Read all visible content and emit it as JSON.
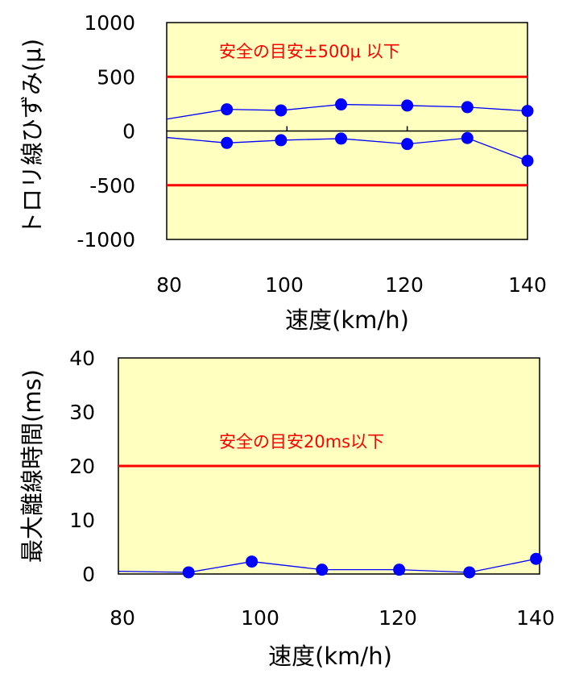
{
  "chart_data": [
    {
      "type": "line",
      "xlabel": "速度(km/h)",
      "ylabel": "トロリ線ひずみ(μ)",
      "xlim": [
        80,
        140
      ],
      "ylim": [
        -1000,
        1000
      ],
      "x_ticks": [
        "80",
        "100",
        "120",
        "140"
      ],
      "y_ticks": [
        "1000",
        "500",
        "0",
        "-500",
        "-1000"
      ],
      "grid": false,
      "background": "#ffffc0",
      "series": [
        {
          "color": "#0000ff",
          "x": [
            75,
            90,
            99,
            109,
            120,
            130,
            140
          ],
          "y": [
            110,
            200,
            190,
            245,
            235,
            220,
            185
          ],
          "markers_from_index": 1
        },
        {
          "color": "#0000ff",
          "x": [
            75,
            90,
            99,
            109,
            120,
            130,
            140
          ],
          "y": [
            -60,
            -110,
            -85,
            -70,
            -120,
            -65,
            -275
          ],
          "markers_from_index": 1
        }
      ],
      "reference_lines": [
        {
          "y": 500,
          "color": "#ff0000"
        },
        {
          "y": -500,
          "color": "#ff0000"
        }
      ],
      "annotation": "安全の目安±500μ 以下"
    },
    {
      "type": "line",
      "xlabel": "速度(km/h)",
      "ylabel": "最大離線時間(ms)",
      "xlim": [
        80,
        140
      ],
      "ylim": [
        0,
        40
      ],
      "x_ticks": [
        "80",
        "100",
        "120",
        "140"
      ],
      "y_ticks": [
        "40",
        "30",
        "20",
        "10",
        "0"
      ],
      "grid": false,
      "background": "#ffffc0",
      "series": [
        {
          "color": "#0000ff",
          "x": [
            75,
            90,
            99,
            109,
            120,
            130,
            139.5
          ],
          "y": [
            0.5,
            0.3,
            2.3,
            0.8,
            0.8,
            0.3,
            2.8
          ],
          "markers_from_index": 1
        }
      ],
      "reference_lines": [
        {
          "y": 20,
          "color": "#ff0000"
        }
      ],
      "annotation": "安全の目安20ms以下"
    }
  ]
}
